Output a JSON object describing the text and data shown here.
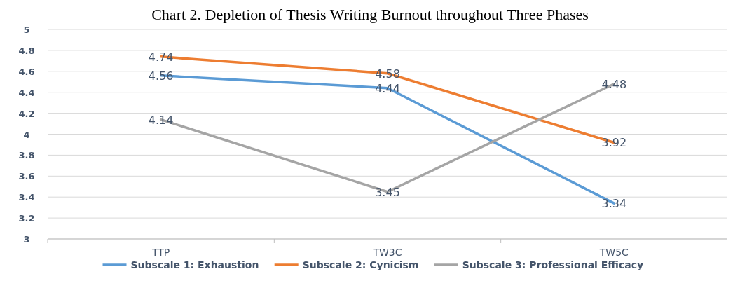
{
  "chart_data": {
    "type": "line",
    "title": "Chart 2. Depletion of Thesis Writing Burnout throughout Three Phases",
    "categories": [
      "TTP",
      "TW3C",
      "TW5C"
    ],
    "series": [
      {
        "name": "Subscale 1: Exhaustion",
        "color": "#5b9bd5",
        "values": [
          4.56,
          4.44,
          3.34
        ]
      },
      {
        "name": "Subscale 2: Cynicism",
        "color": "#ed7d31",
        "values": [
          4.74,
          4.58,
          3.92
        ]
      },
      {
        "name": "Subscale 3: Professional Efficacy",
        "color": "#a5a5a5",
        "values": [
          4.14,
          3.45,
          4.48
        ]
      }
    ],
    "ylim": [
      3,
      5
    ],
    "yticks": [
      3,
      {
        "value": 3.2,
        "label": "3.2"
      },
      {
        "value": 3.4,
        "label": "3.4"
      },
      {
        "value": 3.6,
        "label": "3.6"
      },
      {
        "value": 3.8,
        "label": "3.8"
      },
      4,
      {
        "value": 4.2,
        "label": "4.2"
      },
      {
        "value": 4.4,
        "label": "4.4"
      },
      {
        "value": 4.6,
        "label": "4.6"
      },
      {
        "value": 4.8,
        "label": "4.8"
      },
      5
    ],
    "grid": "y",
    "legend": "bottom",
    "data_labels": true,
    "marker": "none",
    "line_style": "solid"
  }
}
